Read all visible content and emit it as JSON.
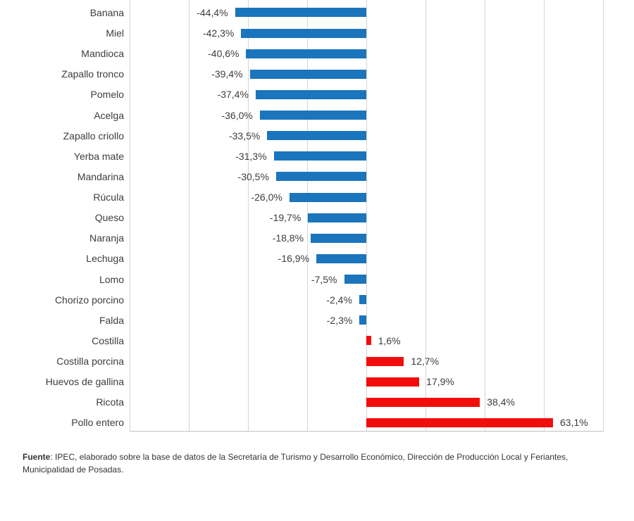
{
  "chart_data": {
    "type": "bar",
    "orientation": "horizontal",
    "title": "",
    "xlabel": "",
    "ylabel": "",
    "xlim": [
      -80,
      80
    ],
    "grid": true,
    "grid_step": 20,
    "legend": "none",
    "categories": [
      "Banana",
      "Miel",
      "Mandioca",
      "Zapallo tronco",
      "Pomelo",
      "Acelga",
      "Zapallo criollo",
      "Yerba mate",
      "Mandarina",
      "Rúcula",
      "Queso",
      "Naranja",
      "Lechuga",
      "Lomo",
      "Chorizo porcino",
      "Falda",
      "Costilla",
      "Costilla porcina",
      "Huevos de gallina",
      "Ricota",
      "Pollo entero"
    ],
    "values": [
      -44.4,
      -42.3,
      -40.6,
      -39.4,
      -37.4,
      -36.0,
      -33.5,
      -31.3,
      -30.5,
      -26.0,
      -19.7,
      -18.8,
      -16.9,
      -7.5,
      -2.4,
      -2.3,
      1.6,
      12.7,
      17.9,
      38.4,
      63.1
    ],
    "value_labels": [
      "-44,4%",
      "-42,3%",
      "-40,6%",
      "-39,4%",
      "-37,4%",
      "-36,0%",
      "-33,5%",
      "-31,3%",
      "-30,5%",
      "-26,0%",
      "-19,7%",
      "-18,8%",
      "-16,9%",
      "-7,5%",
      "-2,4%",
      "-2,3%",
      "1,6%",
      "12,7%",
      "17,9%",
      "38,4%",
      "63,1%"
    ],
    "colors": {
      "negative_bar": "#1b75bc",
      "positive_bar": "#f20d0d",
      "gridline": "#d6d6d6",
      "text": "#3d3d3d"
    }
  },
  "footer": {
    "bold_label": "Fuente",
    "text": ": IPEC, elaborado sobre la base de datos de la Secretaría de Turismo y Desarrollo Económico, Dirección de Producción Local y Feriantes, Municipalidad de Posadas."
  }
}
